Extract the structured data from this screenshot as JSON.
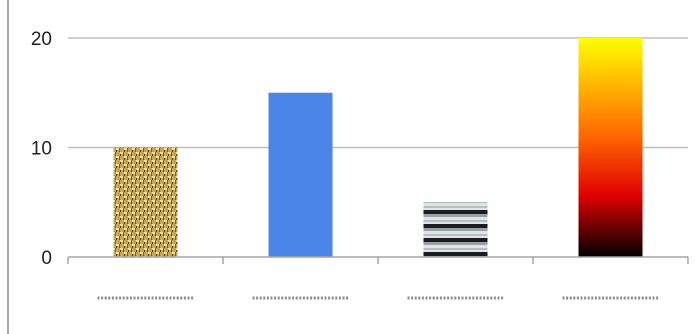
{
  "chart_data": {
    "type": "bar",
    "title": "",
    "xlabel": "",
    "ylabel": "",
    "ylim": [
      0,
      22
    ],
    "yticks": [
      "0",
      "10",
      "20"
    ],
    "grid": true,
    "legend": "none",
    "categories": [
      "",
      "",
      "",
      ""
    ],
    "values": [
      10,
      15,
      5,
      20
    ],
    "fills": [
      "woven-texture",
      "solid",
      "horizontal-stripes",
      "vertical-gradient"
    ],
    "colors": {
      "woven_base": "#c9a453",
      "woven_light": "#f3e2a6",
      "woven_dark": "#4a3a10",
      "solid_blue": "#4a86e8",
      "stripe_light": "#dfe4e4",
      "stripe_mid": "#9aa1a1",
      "stripe_dark": "#1a1d1d",
      "gradient_top": "#ffff00",
      "gradient_mid": "#ff6600",
      "gradient_red": "#e00000",
      "gradient_bottom": "#000000",
      "grid": "#bfbfbf",
      "axis": "#a6a6a6"
    }
  }
}
